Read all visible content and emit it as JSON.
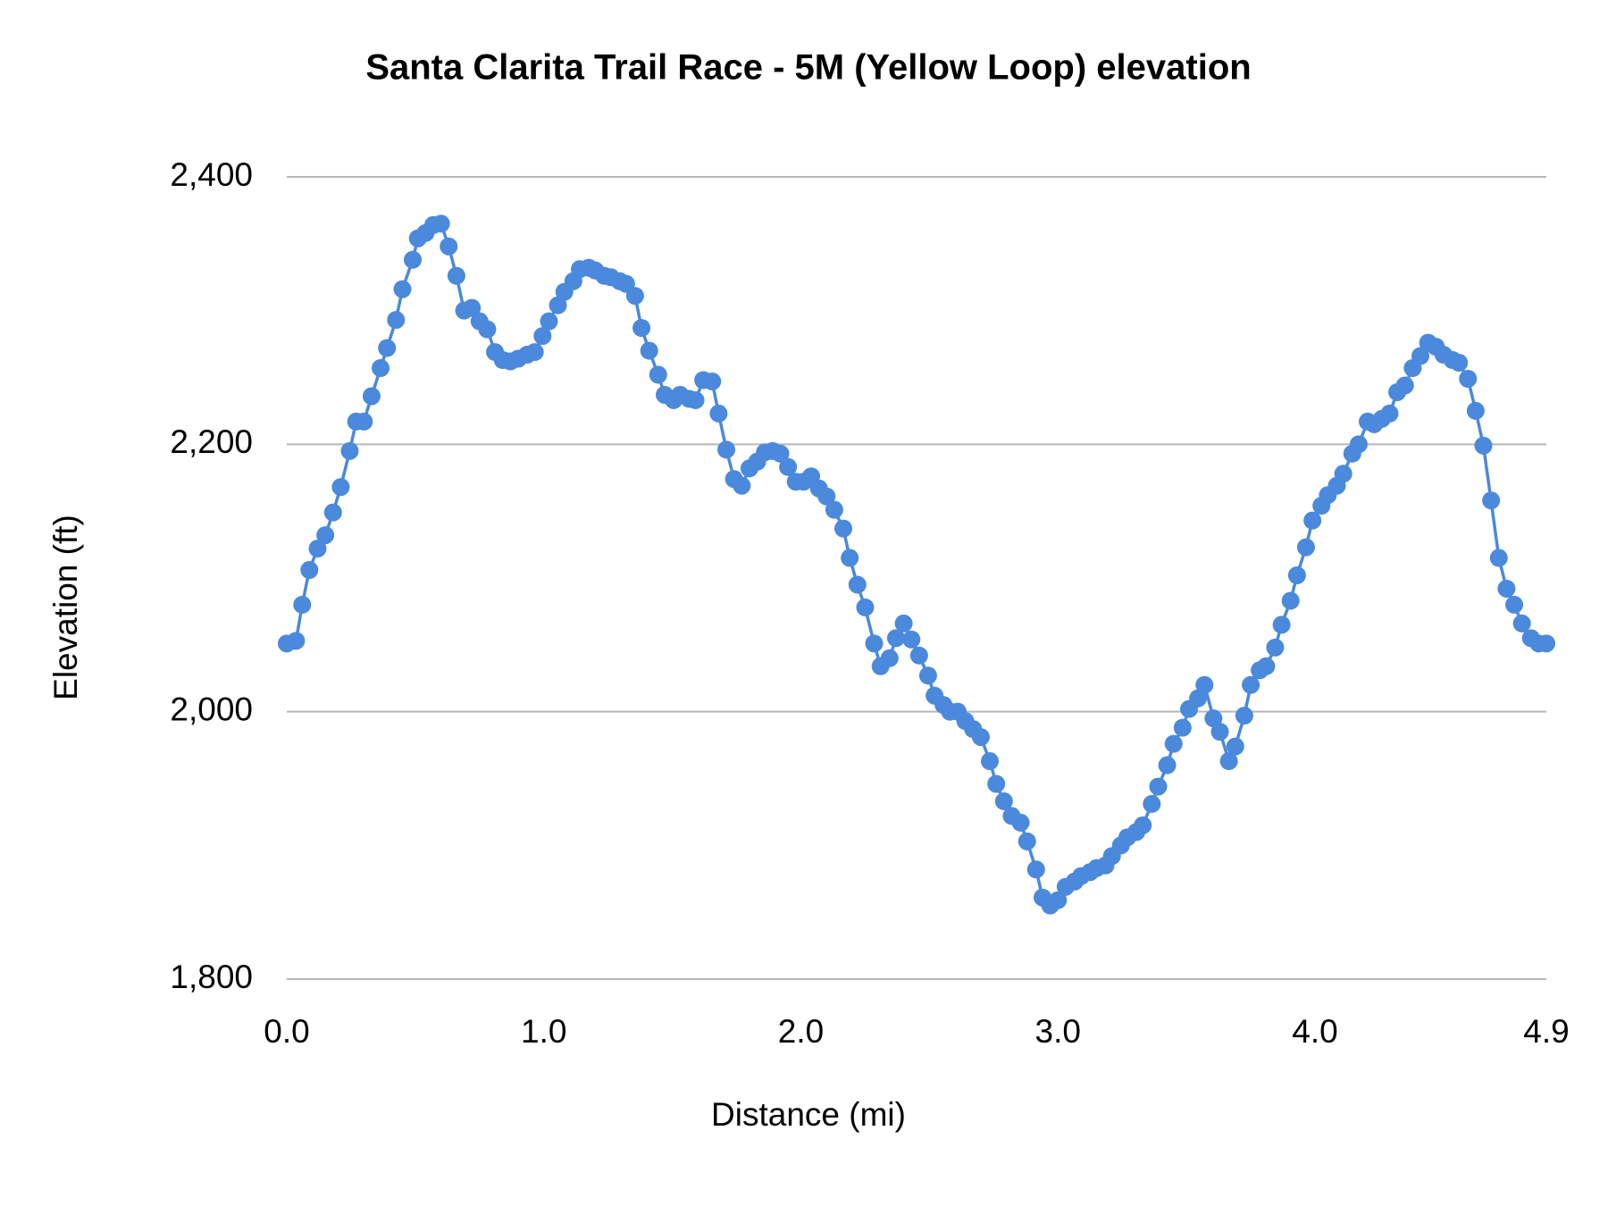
{
  "chart_data": {
    "type": "line",
    "title": "Santa Clarita Trail Race - 5M (Yellow Loop) elevation",
    "x_label": "Distance (mi)",
    "y_label": "Elevation (ft)",
    "xlim": [
      0,
      4.9
    ],
    "ylim": [
      1800,
      2400
    ],
    "xticks": [
      {
        "value": 0,
        "label": "0.0"
      },
      {
        "value": 1,
        "label": "1.0"
      },
      {
        "value": 2,
        "label": "2.0"
      },
      {
        "value": 3,
        "label": "3.0"
      },
      {
        "value": 4,
        "label": "4.0"
      },
      4.9
    ],
    "yticks": [
      {
        "value": 1800,
        "label": "1,800"
      },
      {
        "value": 2000,
        "label": "2,000"
      },
      {
        "value": 2200,
        "label": "2,200"
      },
      {
        "value": 2400,
        "label": "2,400"
      }
    ],
    "grid": true,
    "color": "#4a89dc",
    "x": [
      0.0,
      0.036,
      0.06,
      0.088,
      0.12,
      0.15,
      0.18,
      0.21,
      0.245,
      0.27,
      0.3,
      0.33,
      0.365,
      0.39,
      0.425,
      0.45,
      0.49,
      0.51,
      0.54,
      0.57,
      0.6,
      0.63,
      0.66,
      0.69,
      0.72,
      0.75,
      0.78,
      0.81,
      0.84,
      0.87,
      0.9,
      0.935,
      0.965,
      0.995,
      1.02,
      1.055,
      1.08,
      1.115,
      1.14,
      1.175,
      1.2,
      1.235,
      1.26,
      1.295,
      1.32,
      1.355,
      1.38,
      1.41,
      1.445,
      1.47,
      1.505,
      1.53,
      1.565,
      1.59,
      1.62,
      1.655,
      1.68,
      1.71,
      1.74,
      1.77,
      1.8,
      1.83,
      1.86,
      1.89,
      1.92,
      1.95,
      1.98,
      2.01,
      2.04,
      2.07,
      2.1,
      2.13,
      2.165,
      2.19,
      2.22,
      2.25,
      2.285,
      2.31,
      2.345,
      2.37,
      2.4,
      2.43,
      2.46,
      2.495,
      2.52,
      2.555,
      2.58,
      2.61,
      2.64,
      2.67,
      2.7,
      2.735,
      2.76,
      2.79,
      2.82,
      2.855,
      2.88,
      2.915,
      2.94,
      2.97,
      3.0,
      3.03,
      3.065,
      3.09,
      3.125,
      3.15,
      3.185,
      3.21,
      3.245,
      3.27,
      3.305,
      3.33,
      3.365,
      3.39,
      3.425,
      3.45,
      3.485,
      3.51,
      3.545,
      3.57,
      3.605,
      3.63,
      3.665,
      3.69,
      3.725,
      3.75,
      3.785,
      3.81,
      3.845,
      3.87,
      3.905,
      3.93,
      3.965,
      3.99,
      4.025,
      4.05,
      4.085,
      4.11,
      4.145,
      4.17,
      4.205,
      4.23,
      4.26,
      4.29,
      4.32,
      4.35,
      4.38,
      4.41,
      4.44,
      4.47,
      4.5,
      4.535,
      4.56,
      4.595,
      4.625,
      4.655,
      4.685,
      4.715,
      4.745,
      4.775,
      4.805,
      4.84,
      4.87,
      4.9
    ],
    "values": [
      2051,
      2053,
      2080,
      2106,
      2122,
      2132,
      2149,
      2168,
      2195,
      2217,
      2217,
      2236,
      2257,
      2272,
      2293,
      2316,
      2338,
      2354,
      2358,
      2364,
      2365,
      2348,
      2326,
      2300,
      2302,
      2292,
      2286,
      2269,
      2263,
      2262,
      2264,
      2267,
      2269,
      2281,
      2292,
      2304,
      2314,
      2322,
      2331,
      2332,
      2330,
      2326,
      2325,
      2322,
      2320,
      2311,
      2287,
      2270,
      2252,
      2237,
      2233,
      2237,
      2234,
      2233,
      2248,
      2247,
      2223,
      2196,
      2174,
      2169,
      2182,
      2187,
      2194,
      2195,
      2193,
      2183,
      2172,
      2172,
      2176,
      2167,
      2161,
      2151,
      2137,
      2115,
      2095,
      2078,
      2051,
      2034,
      2040,
      2055,
      2066,
      2054,
      2042,
      2027,
      2012,
      2005,
      2000,
      2000,
      1993,
      1987,
      1981,
      1963,
      1946,
      1933,
      1922,
      1917,
      1903,
      1882,
      1861,
      1855,
      1859,
      1869,
      1873,
      1877,
      1880,
      1883,
      1885,
      1892,
      1900,
      1906,
      1910,
      1915,
      1931,
      1944,
      1960,
      1976,
      1988,
      2002,
      2010,
      2020,
      1995,
      1985,
      1963,
      1974,
      1997,
      2020,
      2031,
      2034,
      2048,
      2065,
      2083,
      2102,
      2123,
      2143,
      2154,
      2162,
      2169,
      2178,
      2193,
      2200,
      2217,
      2215,
      2219,
      2223,
      2239,
      2244,
      2257,
      2266,
      2276,
      2273,
      2267,
      2263,
      2261,
      2249,
      2225,
      2199,
      2158,
      2115,
      2092,
      2080,
      2066,
      2055,
      2051,
      2051
    ]
  }
}
